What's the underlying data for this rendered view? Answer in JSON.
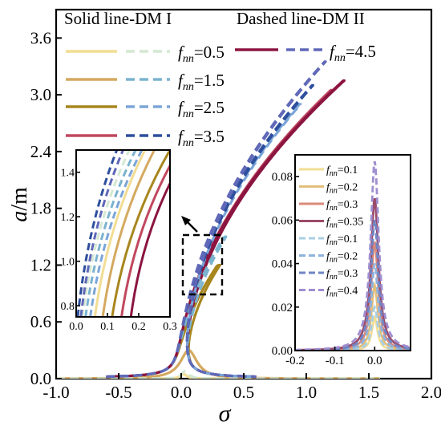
{
  "chart_data": [
    {
      "id": "main",
      "type": "line",
      "xlabel": "σ",
      "ylabel_main": "a",
      "ylabel_unit": "/m",
      "xlim": [
        -1.0,
        2.0
      ],
      "ylim": [
        0.0,
        3.9
      ],
      "xticks": [
        "-1.0",
        "-0.5",
        "0.0",
        "0.5",
        "1.0",
        "1.5",
        "2.0"
      ],
      "yticks": [
        "0.0",
        "0.6",
        "1.2",
        "1.8",
        "2.4",
        "3.0",
        "3.6"
      ],
      "legend_header_solid": "Solid line-DM I",
      "legend_header_dashed": "Dashed line-DM II",
      "legend_entries": [
        {
          "f": "0.5",
          "solid_color": "#f2dd94",
          "dashed_color": "#d4e8d2"
        },
        {
          "f": "1.5",
          "solid_color": "#d4a960",
          "dashed_color": "#7ab3cf"
        },
        {
          "f": "2.5",
          "solid_color": "#a8861e",
          "dashed_color": "#7ba5d8"
        },
        {
          "f": "3.5",
          "solid_color": "#c0485f",
          "dashed_color": "#2e4f9e"
        },
        {
          "f": "4.5",
          "solid_color": "#8b1540",
          "dashed_color": "#6068b8"
        }
      ],
      "f_symbol": "f",
      "f_subscript": "nn",
      "series": [
        {
          "f": 0.5,
          "style": "solid",
          "color": "#f2dd94",
          "peak_sigma": 0.02,
          "peak_a": 0.05
        },
        {
          "f": 1.5,
          "style": "solid",
          "color": "#d4a960",
          "peak_sigma": 0.06,
          "peak_a": 0.3
        },
        {
          "f": 2.5,
          "style": "solid",
          "color": "#a8861e",
          "peak_sigma": 0.3,
          "peak_a": 1.2
        },
        {
          "f": 3.5,
          "style": "solid",
          "color": "#c0485f",
          "peak_sigma": 1.2,
          "peak_a": 3.05
        },
        {
          "f": 4.5,
          "style": "solid",
          "color": "#8b1540",
          "peak_sigma": 1.3,
          "peak_a": 3.15
        },
        {
          "f": 0.5,
          "style": "dashed",
          "color": "#d4e8d2",
          "peak_sigma": 0.03,
          "peak_a": 0.08
        },
        {
          "f": 1.5,
          "style": "dashed",
          "color": "#7ab3cf",
          "peak_sigma": 0.35,
          "peak_a": 1.5
        },
        {
          "f": 2.5,
          "style": "dashed",
          "color": "#7ba5d8",
          "peak_sigma": 0.95,
          "peak_a": 2.9
        },
        {
          "f": 3.5,
          "style": "dashed",
          "color": "#2e4f9e",
          "peak_sigma": 1.05,
          "peak_a": 3.1
        },
        {
          "f": 4.5,
          "style": "dashed",
          "color": "#6068b8",
          "peak_sigma": 1.15,
          "peak_a": 3.35
        }
      ]
    },
    {
      "id": "inset_zoom",
      "type": "line",
      "xlim": [
        0.0,
        0.3
      ],
      "ylim": [
        0.75,
        1.5
      ],
      "xticks": [
        "0.0",
        "0.1",
        "0.2",
        "0.3"
      ],
      "yticks": [
        "0.8",
        "1.0",
        "1.2",
        "1.4"
      ],
      "series": [
        {
          "style": "solid",
          "color": "#8b1540",
          "start": [
            0.175,
            0.75
          ],
          "end": [
            0.3,
            1.35
          ]
        },
        {
          "style": "solid",
          "color": "#c0485f",
          "start": [
            0.145,
            0.75
          ],
          "end": [
            0.3,
            1.43
          ]
        },
        {
          "style": "solid",
          "color": "#a8861e",
          "start": [
            0.115,
            0.75
          ],
          "end": [
            0.3,
            1.5
          ]
        },
        {
          "style": "solid",
          "color": "#d4a960",
          "start": [
            0.085,
            0.75
          ],
          "end": [
            0.25,
            1.5
          ]
        },
        {
          "style": "solid",
          "color": "#f2dd94",
          "start": [
            0.06,
            0.75
          ],
          "end": [
            0.22,
            1.5
          ]
        },
        {
          "style": "dashed",
          "color": "#d4e8d2",
          "start": [
            0.02,
            0.75
          ],
          "end": [
            0.17,
            1.5
          ]
        },
        {
          "style": "dashed",
          "color": "#7ab3cf",
          "start": [
            0.03,
            0.75
          ],
          "end": [
            0.19,
            1.5
          ]
        },
        {
          "style": "dashed",
          "color": "#7ba5d8",
          "start": [
            0.045,
            0.75
          ],
          "end": [
            0.21,
            1.5
          ]
        },
        {
          "style": "dashed",
          "color": "#6068b8",
          "start": [
            0.015,
            0.75
          ],
          "end": [
            0.15,
            1.5
          ]
        },
        {
          "style": "dashed",
          "color": "#2e4f9e",
          "start": [
            0.005,
            0.75
          ],
          "end": [
            0.13,
            1.5
          ]
        }
      ]
    },
    {
      "id": "inset_small",
      "type": "line",
      "xlim": [
        -0.2,
        0.09
      ],
      "ylim": [
        0.0,
        0.09
      ],
      "xticks": [
        "-0.2",
        "-0.1",
        "0.0"
      ],
      "yticks": [
        "0.00",
        "0.02",
        "0.04",
        "0.06",
        "0.08"
      ],
      "legend_entries": [
        {
          "f": "0.1",
          "style": "solid",
          "color": "#f2dd94"
        },
        {
          "f": "0.2",
          "style": "solid",
          "color": "#e3bf7c"
        },
        {
          "f": "0.3",
          "style": "solid",
          "color": "#d98a7a"
        },
        {
          "f": "0.35",
          "style": "solid",
          "color": "#9a4a6a"
        },
        {
          "f": "0.1",
          "style": "dashed",
          "color": "#a9cfe3"
        },
        {
          "f": "0.2",
          "style": "dashed",
          "color": "#8fb3dd"
        },
        {
          "f": "0.3",
          "style": "dashed",
          "color": "#6f86c6"
        },
        {
          "f": "0.4",
          "style": "dashed",
          "color": "#9f8ed0"
        }
      ],
      "series": [
        {
          "style": "solid",
          "color": "#f2dd94",
          "peak": 0.015
        },
        {
          "style": "solid",
          "color": "#e3bf7c",
          "peak": 0.03
        },
        {
          "style": "solid",
          "color": "#d98a7a",
          "peak": 0.05
        },
        {
          "style": "solid",
          "color": "#9a4a6a",
          "peak": 0.07
        },
        {
          "style": "dashed",
          "color": "#a9cfe3",
          "peak": 0.02
        },
        {
          "style": "dashed",
          "color": "#8fb3dd",
          "peak": 0.04
        },
        {
          "style": "dashed",
          "color": "#6f86c6",
          "peak": 0.06
        },
        {
          "style": "dashed",
          "color": "#9f8ed0",
          "peak": 0.087
        }
      ]
    }
  ]
}
